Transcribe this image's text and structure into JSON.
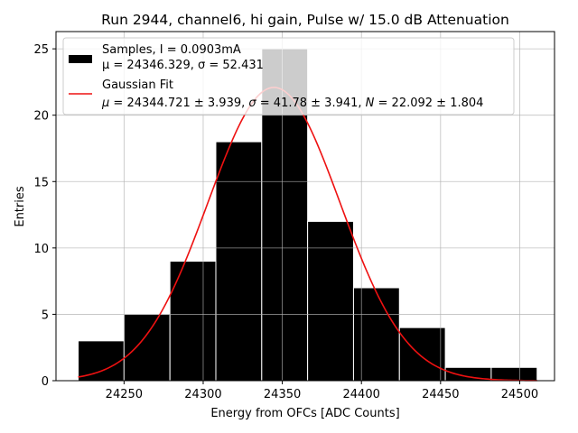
{
  "chart_data": {
    "type": "bar",
    "title": "Run 2944, channel6, hi gain, Pulse w/ 15.0 dB Attenuation",
    "xlabel": "Energy from OFCs [ADC Counts]",
    "ylabel": "Entries",
    "xlim": [
      24207,
      24522
    ],
    "ylim": [
      0,
      26.3
    ],
    "xticks": [
      24250,
      24300,
      24350,
      24400,
      24450,
      24500
    ],
    "yticks": [
      0,
      5,
      10,
      15,
      20,
      25
    ],
    "grid": true,
    "legend_position": "top",
    "histogram": {
      "name": "Samples, I = 0.0903mA",
      "stats": "μ = 24346.329, σ = 52.431",
      "color": "#000000",
      "bins": [
        {
          "left": 24221.0,
          "right": 24250.0,
          "count": 3
        },
        {
          "left": 24250.0,
          "right": 24279.0,
          "count": 5
        },
        {
          "left": 24279.0,
          "right": 24308.0,
          "count": 9
        },
        {
          "left": 24308.0,
          "right": 24337.0,
          "count": 18
        },
        {
          "left": 24337.0,
          "right": 24366.0,
          "count": 25
        },
        {
          "left": 24366.0,
          "right": 24395.0,
          "count": 12
        },
        {
          "left": 24395.0,
          "right": 24424.0,
          "count": 7
        },
        {
          "left": 24424.0,
          "right": 24453.0,
          "count": 4
        },
        {
          "left": 24453.0,
          "right": 24482.0,
          "count": 1
        },
        {
          "left": 24482.0,
          "right": 24511.0,
          "count": 1
        }
      ]
    },
    "fit": {
      "name": "Gaussian Fit",
      "stats_parts": [
        {
          "sym": "μ",
          "val": " = 24344.721 ± 3.939, "
        },
        {
          "sym": "σ",
          "val": " = 41.78 ± 3.941, "
        },
        {
          "sym": "N",
          "val": " = 22.092 ± 1.804"
        }
      ],
      "mu": 24344.721,
      "sigma": 41.78,
      "amplitude": 22.092,
      "x_range": [
        24221,
        24511
      ],
      "color": "#ee1111"
    }
  }
}
